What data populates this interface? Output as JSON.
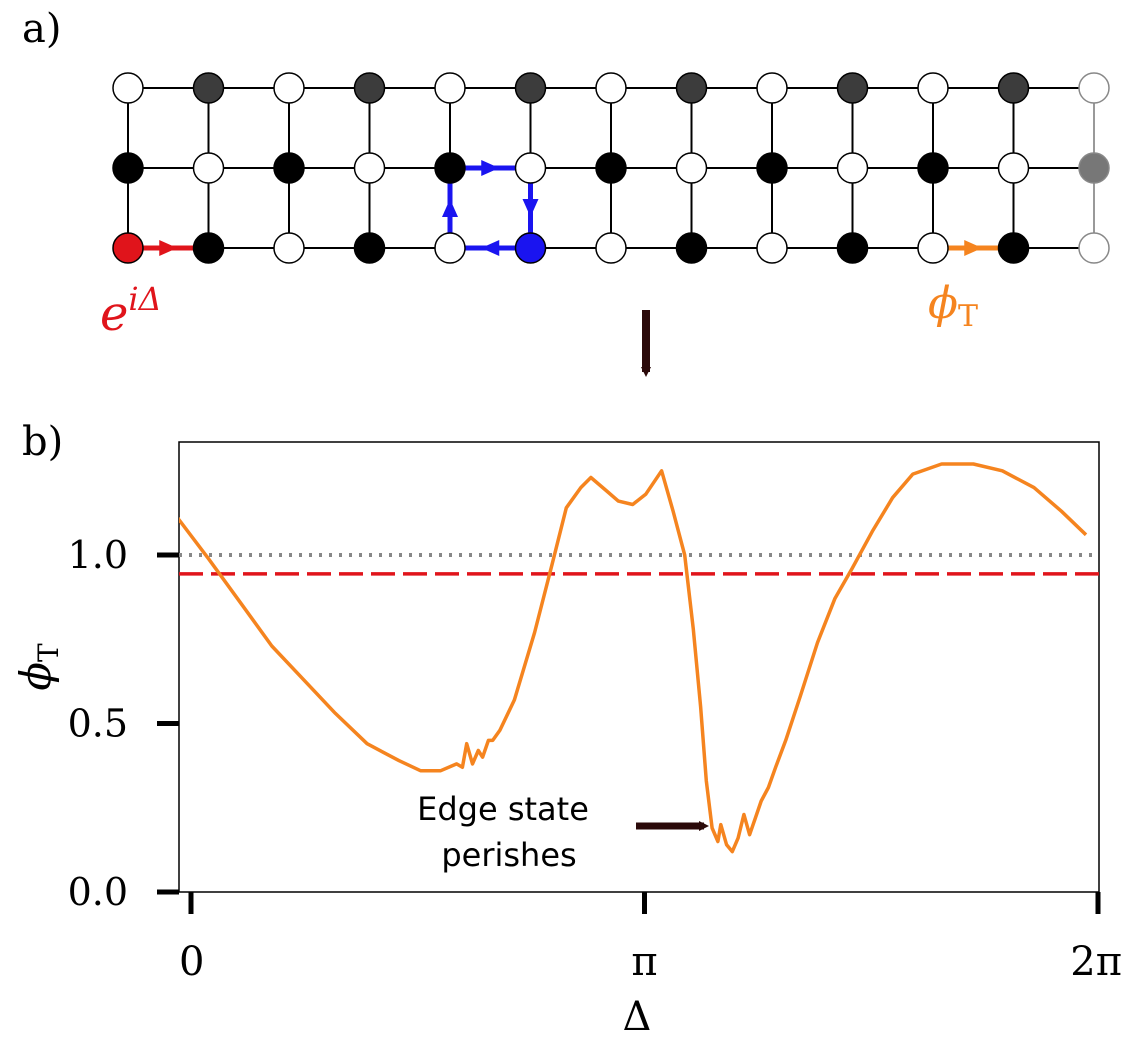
{
  "panel_a": {
    "label": "a)",
    "phase_label": "e",
    "phase_sup": "iΔ",
    "transmission_label": "ϕ",
    "transmission_sub": "T"
  },
  "panel_b": {
    "label": "b)",
    "annotation_line1": "Edge state",
    "annotation_line2": "perishes"
  },
  "colors": {
    "orange": "#f5841f",
    "red": "#e0141b",
    "blue": "#1a14f0",
    "gray_dotted": "#888888",
    "black": "#000000",
    "arrow": "#2b0a0a"
  },
  "chart_data": {
    "type": "line",
    "xlabel": "Δ",
    "ylabel": "ϕ",
    "ylabel_sub": "T",
    "xlim": [
      0,
      6.2832
    ],
    "ylim": [
      0.0,
      1.3
    ],
    "x_ticks": [
      {
        "value": 0,
        "label": "0"
      },
      {
        "value": 3.1416,
        "label": "π"
      },
      {
        "value": 6.2832,
        "label": "2π"
      }
    ],
    "y_ticks": [
      {
        "value": 0.0,
        "label": "0.0"
      },
      {
        "value": 0.5,
        "label": "0.5"
      },
      {
        "value": 1.0,
        "label": "1.0"
      }
    ],
    "hlines": [
      {
        "y": 1.0,
        "style": "dotted",
        "color": "#888888"
      },
      {
        "y": 0.944,
        "style": "dashed",
        "color": "#e0141b"
      }
    ],
    "series": [
      {
        "color": "#f5841f",
        "x": [
          -0.11,
          0.12,
          0.34,
          0.56,
          0.78,
          1.0,
          1.22,
          1.44,
          1.59,
          1.73,
          1.84,
          1.88,
          1.91,
          1.95,
          1.99,
          2.02,
          2.06,
          2.09,
          2.14,
          2.24,
          2.38,
          2.5,
          2.6,
          2.7,
          2.77,
          2.88,
          2.96,
          3.06,
          3.15,
          3.26,
          3.34,
          3.42,
          3.48,
          3.53,
          3.57,
          3.61,
          3.65,
          3.67,
          3.71,
          3.75,
          3.79,
          3.83,
          3.87,
          3.91,
          3.95,
          4.0,
          4.05,
          4.12,
          4.22,
          4.34,
          4.46,
          4.58,
          4.72,
          4.86,
          5.0,
          5.2,
          5.42,
          5.62,
          5.84,
          6.03,
          6.2
        ],
        "y": [
          1.12,
          0.99,
          0.86,
          0.73,
          0.63,
          0.53,
          0.44,
          0.39,
          0.36,
          0.36,
          0.38,
          0.37,
          0.44,
          0.38,
          0.42,
          0.4,
          0.45,
          0.45,
          0.48,
          0.57,
          0.77,
          0.97,
          1.14,
          1.2,
          1.23,
          1.19,
          1.16,
          1.15,
          1.18,
          1.25,
          1.13,
          1.0,
          0.78,
          0.55,
          0.33,
          0.19,
          0.15,
          0.2,
          0.14,
          0.12,
          0.16,
          0.23,
          0.17,
          0.22,
          0.27,
          0.31,
          0.37,
          0.45,
          0.58,
          0.74,
          0.87,
          0.96,
          1.07,
          1.17,
          1.24,
          1.27,
          1.27,
          1.25,
          1.2,
          1.13,
          1.06
        ]
      }
    ]
  }
}
